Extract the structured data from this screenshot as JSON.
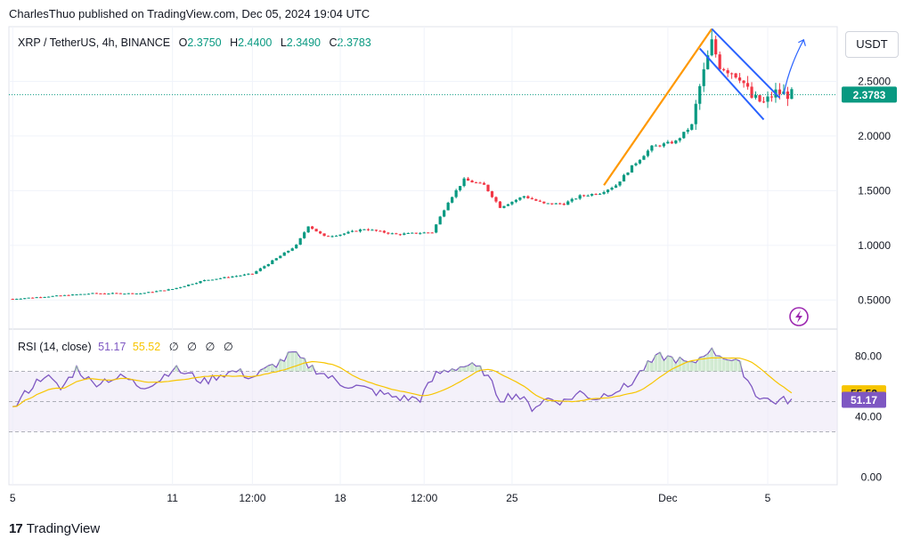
{
  "header": {
    "publisher_line": "CharlesThuo published on TradingView.com, Dec 05, 2024 19:04 UTC"
  },
  "symbol": {
    "name": "XRP / TetherUS, 4h, BINANCE",
    "open_label": "O",
    "open": "2.3750",
    "high_label": "H",
    "high": "2.4400",
    "low_label": "L",
    "low": "2.3490",
    "close_label": "C",
    "close": "2.3783"
  },
  "currency_button": "USDT",
  "price_tag": "2.3783",
  "rsi": {
    "label": "RSI (14, close)",
    "value": "51.17",
    "ma_value": "55.52",
    "placeholders": [
      "∅",
      "∅",
      "∅",
      "∅"
    ],
    "value_tag": "51.17",
    "ma_tag": "55.52"
  },
  "footer": {
    "brand": "TradingView",
    "logo_text": "17"
  },
  "colors": {
    "up": "#089981",
    "down": "#f23645",
    "rsi": "#7e57c2",
    "rsi_ma": "#f7c500",
    "pole": "#ff9800",
    "flag": "#2962ff",
    "arrow": "#2962ff",
    "band": "#ede7f6"
  },
  "chart_data": {
    "type": "candlestick",
    "price_axis": {
      "ticks": [
        "0.5000",
        "1.0000",
        "1.5000",
        "2.0000",
        "2.5000"
      ],
      "values": [
        0.5,
        1.0,
        1.5,
        2.0,
        2.5
      ],
      "range": [
        0.25,
        3.0
      ]
    },
    "rsi_axis": {
      "ticks": [
        "0.00",
        "40.00",
        "80.00"
      ],
      "values": [
        0,
        40,
        80
      ],
      "range": [
        -5,
        95
      ],
      "band": [
        30,
        70
      ]
    },
    "time_axis": {
      "labels": [
        "5",
        "11",
        "12:00",
        "18",
        "12:00",
        "25",
        "Dec",
        "5"
      ],
      "positions": [
        0,
        40,
        60,
        82,
        103,
        125,
        164,
        189
      ]
    },
    "bar_count": 196,
    "anchors": [
      [
        0,
        0.51
      ],
      [
        20,
        0.56
      ],
      [
        32,
        0.56
      ],
      [
        40,
        0.6
      ],
      [
        48,
        0.68
      ],
      [
        60,
        0.74
      ],
      [
        66,
        0.88
      ],
      [
        71,
        1.0
      ],
      [
        74,
        1.18
      ],
      [
        78,
        1.08
      ],
      [
        82,
        1.1
      ],
      [
        88,
        1.15
      ],
      [
        96,
        1.1
      ],
      [
        105,
        1.12
      ],
      [
        109,
        1.4
      ],
      [
        113,
        1.6
      ],
      [
        118,
        1.55
      ],
      [
        122,
        1.35
      ],
      [
        128,
        1.45
      ],
      [
        133,
        1.38
      ],
      [
        138,
        1.38
      ],
      [
        142,
        1.45
      ],
      [
        147,
        1.48
      ],
      [
        151,
        1.55
      ],
      [
        155,
        1.72
      ],
      [
        160,
        1.9
      ],
      [
        166,
        1.95
      ],
      [
        170,
        2.1
      ],
      [
        172,
        2.45
      ],
      [
        175,
        2.85
      ],
      [
        177,
        2.65
      ],
      [
        182,
        2.55
      ],
      [
        185,
        2.35
      ],
      [
        188,
        2.3
      ],
      [
        191,
        2.4
      ],
      [
        194,
        2.38
      ]
    ],
    "rsi_anchors": [
      [
        0,
        45
      ],
      [
        4,
        58
      ],
      [
        8,
        68
      ],
      [
        12,
        58
      ],
      [
        16,
        72
      ],
      [
        20,
        62
      ],
      [
        24,
        65
      ],
      [
        28,
        66
      ],
      [
        32,
        60
      ],
      [
        36,
        63
      ],
      [
        40,
        72
      ],
      [
        44,
        68
      ],
      [
        48,
        63
      ],
      [
        52,
        68
      ],
      [
        56,
        70
      ],
      [
        60,
        66
      ],
      [
        64,
        72
      ],
      [
        68,
        78
      ],
      [
        70,
        82
      ],
      [
        74,
        74
      ],
      [
        78,
        68
      ],
      [
        82,
        62
      ],
      [
        86,
        60
      ],
      [
        90,
        57
      ],
      [
        94,
        54
      ],
      [
        98,
        52
      ],
      [
        102,
        52
      ],
      [
        106,
        68
      ],
      [
        110,
        72
      ],
      [
        114,
        74
      ],
      [
        118,
        70
      ],
      [
        122,
        52
      ],
      [
        126,
        55
      ],
      [
        130,
        46
      ],
      [
        134,
        52
      ],
      [
        138,
        50
      ],
      [
        142,
        56
      ],
      [
        146,
        52
      ],
      [
        150,
        57
      ],
      [
        154,
        60
      ],
      [
        158,
        72
      ],
      [
        162,
        80
      ],
      [
        166,
        78
      ],
      [
        170,
        74
      ],
      [
        174,
        84
      ],
      [
        178,
        80
      ],
      [
        182,
        74
      ],
      [
        186,
        55
      ],
      [
        190,
        50
      ],
      [
        194,
        51
      ]
    ],
    "annotations": {
      "flagpole": [
        [
          148,
          1.55
        ],
        [
          175,
          2.98
        ]
      ],
      "flag_upper": [
        [
          175,
          2.98
        ],
        [
          192,
          2.35
        ]
      ],
      "flag_lower": [
        [
          172,
          2.8
        ],
        [
          188,
          2.15
        ]
      ],
      "breakout_arrow": [
        [
          193,
          2.38
        ],
        [
          198,
          2.88
        ]
      ]
    }
  }
}
